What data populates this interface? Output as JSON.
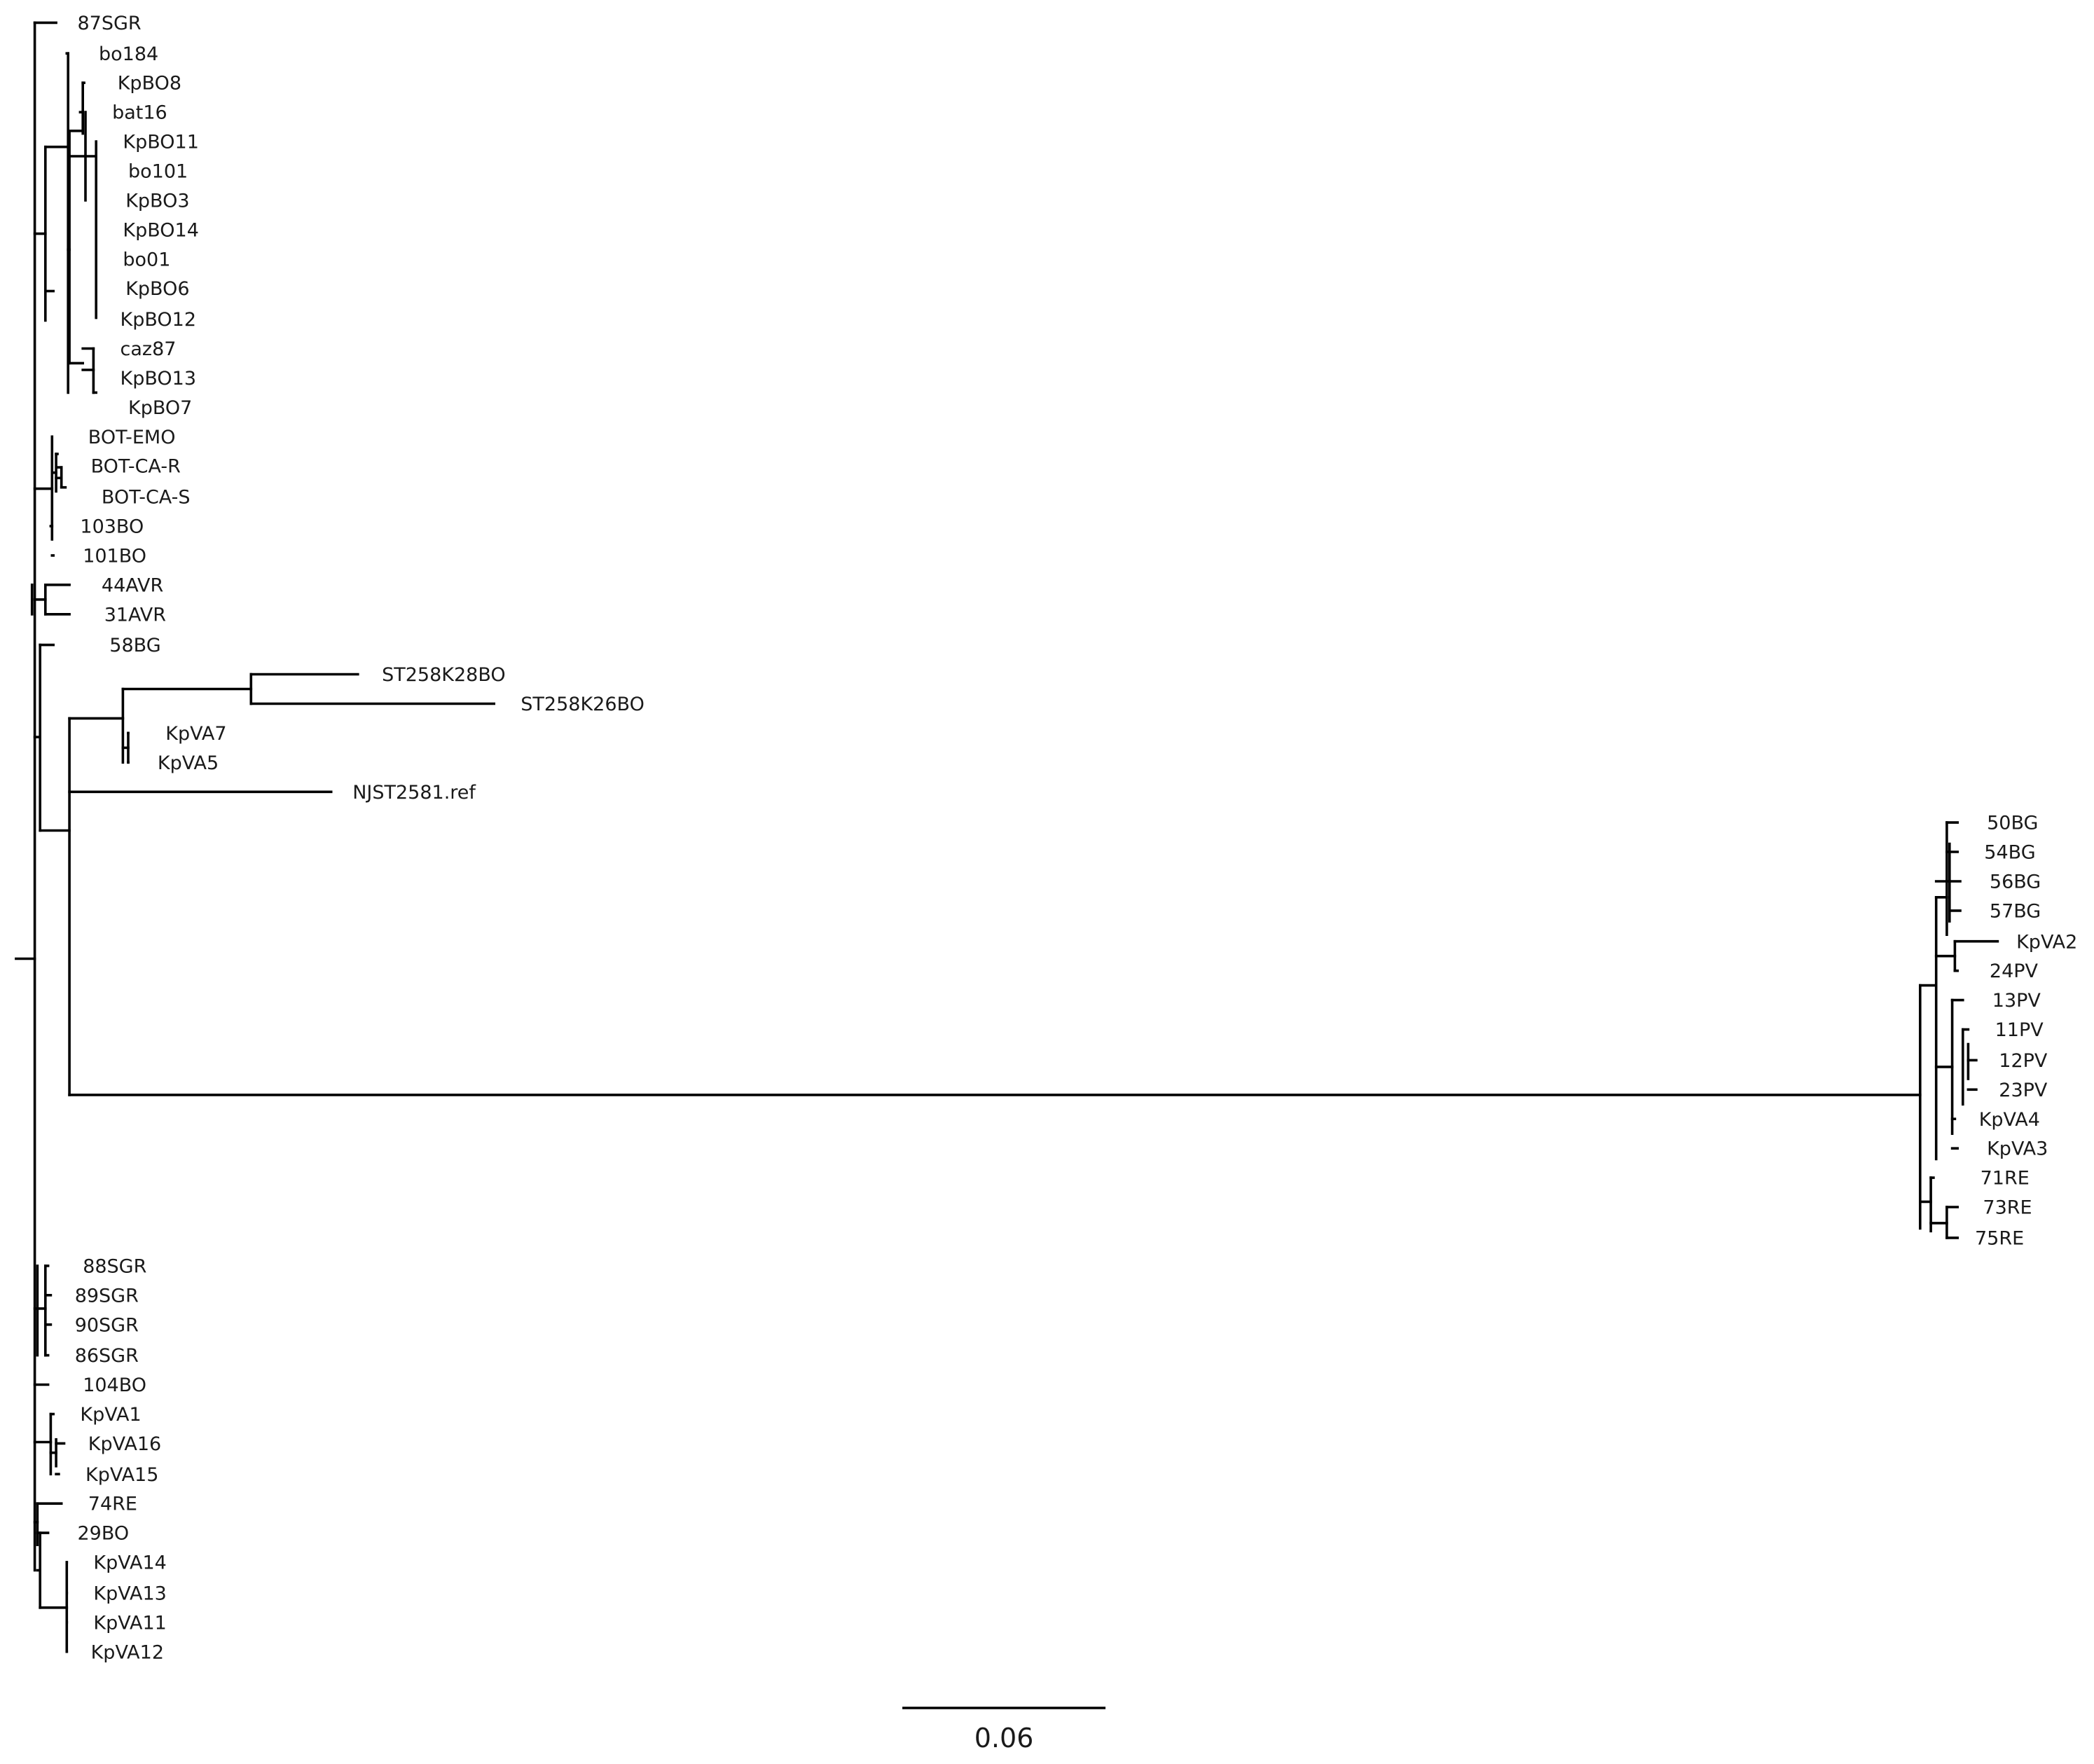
{
  "tree": {
    "leaves": [
      "87SGR",
      "bo184",
      "KpBO8",
      "bat16",
      "KpBO11",
      "bo101",
      "KpBO3",
      "KpBO14",
      "bo01",
      "KpBO6",
      "KpBO12",
      "caz87",
      "KpBO13",
      "KpBO7",
      "BOT-EMO",
      "BOT-CA-R",
      "BOT-CA-S",
      "103BO",
      "101BO",
      "44AVR",
      "31AVR",
      "58BG",
      "ST258K28BO",
      "ST258K26BO",
      "KpVA7",
      "KpVA5",
      "NJST2581.ref",
      "50BG",
      "54BG",
      "56BG",
      "57BG",
      "KpVA2",
      "24PV",
      "13PV",
      "11PV",
      "12PV",
      "23PV",
      "KpVA4",
      "KpVA3",
      "71RE",
      "73RE",
      "75RE",
      "88SGR",
      "89SGR",
      "90SGR",
      "86SGR",
      "104BO",
      "KpVA1",
      "KpVA16",
      "KpVA15",
      "74RE",
      "29BO",
      "KpVA14",
      "KpVA13",
      "KpVA11",
      "KpVA12"
    ]
  },
  "scale_bar": {
    "label": "0.06"
  },
  "colors": {
    "line": "#000000",
    "text": "#1a1a1a",
    "background": "#ffffff"
  }
}
